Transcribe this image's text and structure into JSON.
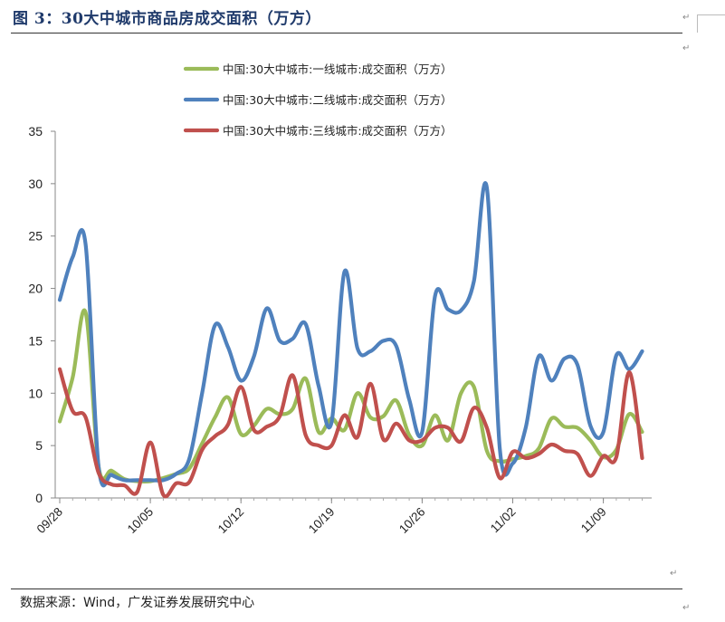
{
  "header": {
    "title": "图 3：30大中城市商品房成交面积（万方）"
  },
  "footer": {
    "source": "数据来源：Wind，广发证券发展研究中心"
  },
  "chart_data": {
    "type": "line",
    "title": "",
    "xlabel": "",
    "ylabel": "",
    "ylim": [
      0,
      35
    ],
    "yticks": [
      0,
      5,
      10,
      15,
      20,
      25,
      30,
      35
    ],
    "xtick_labels": [
      "09/28",
      "10/05",
      "10/12",
      "10/19",
      "10/26",
      "11/02",
      "11/09"
    ],
    "x_start": "09/28",
    "grid": false,
    "legend_position": "top",
    "x": [
      "09/28",
      "09/29",
      "09/30",
      "10/01",
      "10/02",
      "10/03",
      "10/04",
      "10/05",
      "10/06",
      "10/07",
      "10/08",
      "10/09",
      "10/10",
      "10/11",
      "10/12",
      "10/13",
      "10/14",
      "10/15",
      "10/16",
      "10/17",
      "10/18",
      "10/19",
      "10/20",
      "10/21",
      "10/22",
      "10/23",
      "10/24",
      "10/25",
      "10/26",
      "10/27",
      "10/28",
      "10/29",
      "10/30",
      "10/31",
      "11/01",
      "11/02",
      "11/03",
      "11/04",
      "11/05",
      "11/06",
      "11/07",
      "11/08",
      "11/09",
      "11/10",
      "11/11",
      "11/12"
    ],
    "series": [
      {
        "name": "中国:30大中城市:一线城市:成交面积（万方）",
        "color": "#9bbb59",
        "values": [
          7.3,
          11.5,
          17.7,
          3.0,
          2.6,
          1.8,
          1.6,
          1.6,
          1.9,
          2.3,
          2.8,
          5.2,
          7.7,
          9.6,
          6.1,
          6.9,
          8.5,
          8.0,
          8.5,
          11.4,
          6.3,
          7.6,
          6.5,
          10.0,
          7.7,
          7.8,
          9.3,
          6.0,
          5.0,
          7.9,
          5.5,
          10.0,
          10.6,
          4.5,
          3.5,
          3.7,
          4.0,
          4.7,
          7.6,
          6.8,
          6.7,
          5.5,
          3.9,
          4.6,
          8.0,
          6.3
        ]
      },
      {
        "name": "中国:30大中城市:二线城市:成交面积（万方）",
        "color": "#4f81bd",
        "values": [
          18.9,
          23.0,
          24.2,
          3.0,
          2.2,
          1.7,
          1.7,
          1.7,
          1.7,
          2.3,
          3.7,
          10.0,
          16.5,
          14.4,
          11.2,
          13.5,
          18.1,
          15.0,
          15.2,
          16.6,
          10.7,
          7.2,
          21.6,
          14.3,
          14.0,
          15.0,
          14.5,
          9.4,
          6.3,
          19.3,
          18.0,
          17.9,
          20.7,
          29.6,
          4.7,
          3.3,
          6.7,
          13.5,
          11.2,
          13.3,
          12.7,
          6.9,
          6.3,
          13.6,
          12.3,
          14.0
        ]
      },
      {
        "name": "中国:30大中城市:三线城市:成交面积（万方）",
        "color": "#c0504d",
        "values": [
          12.3,
          8.3,
          7.7,
          2.4,
          1.3,
          1.2,
          0.6,
          5.3,
          0.3,
          1.4,
          1.5,
          4.6,
          5.9,
          7.0,
          10.6,
          6.5,
          6.8,
          7.8,
          11.7,
          6.0,
          5.0,
          5.0,
          7.9,
          5.8,
          10.9,
          5.6,
          7.1,
          5.5,
          5.5,
          6.7,
          6.7,
          5.4,
          8.6,
          6.7,
          1.9,
          4.4,
          3.8,
          4.2,
          5.1,
          4.5,
          4.2,
          2.1,
          4.0,
          3.9,
          12.0,
          3.8
        ]
      }
    ]
  }
}
